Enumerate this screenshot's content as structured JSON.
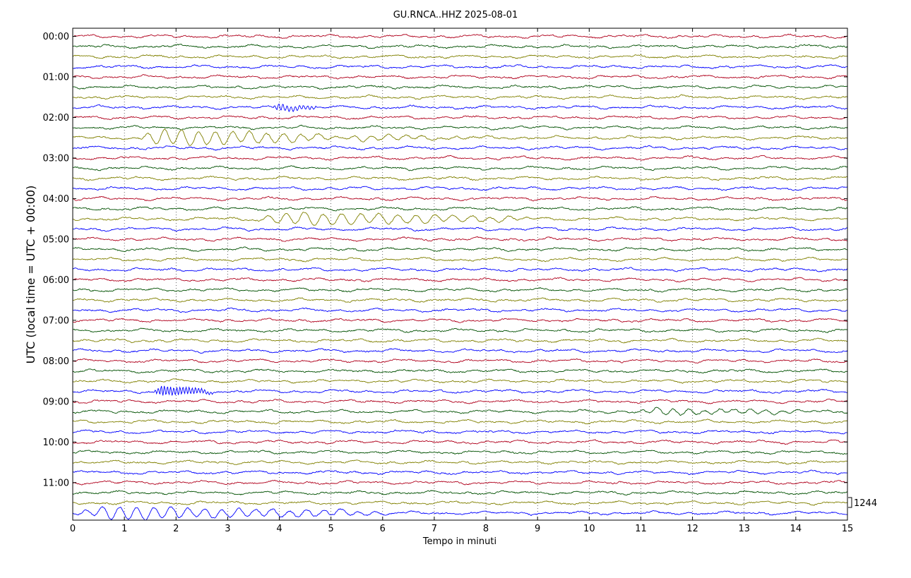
{
  "chart_data": {
    "type": "line",
    "title": "GU.RNCA..HHZ 2025-08-01",
    "xlabel": "Tempo in minuti",
    "ylabel": "UTC (local time = UTC + 00:00)",
    "xlim": [
      0,
      15
    ],
    "x_ticks": [
      "0",
      "1",
      "2",
      "3",
      "4",
      "5",
      "6",
      "7",
      "8",
      "9",
      "10",
      "11",
      "12",
      "13",
      "14",
      "15"
    ],
    "y_ticks": [
      "00:00",
      "01:00",
      "02:00",
      "03:00",
      "04:00",
      "05:00",
      "06:00",
      "07:00",
      "08:00",
      "09:00",
      "10:00",
      "11:00"
    ],
    "scale_label": "1244",
    "grid": true,
    "trace_colors": [
      "#b0001c",
      "#005000",
      "#808000",
      "#0000ff"
    ],
    "trace_count": 48,
    "events": [
      {
        "trace": 7,
        "t_start": 3.85,
        "t_end": 4.8,
        "amplitude": 0.55,
        "period": 0.08
      },
      {
        "trace": 10,
        "t_start": 1.2,
        "t_end": 5.2,
        "amplitude": 1.35,
        "period": 0.33
      },
      {
        "trace": 10,
        "t_start": 5.2,
        "t_end": 8.5,
        "amplitude": 0.45,
        "period": 0.33
      },
      {
        "trace": 18,
        "t_start": 3.5,
        "t_end": 9.0,
        "amplitude": 0.95,
        "period": 0.36
      },
      {
        "trace": 35,
        "t_start": 1.55,
        "t_end": 2.8,
        "amplitude": 0.8,
        "period": 0.06
      },
      {
        "trace": 37,
        "t_start": 10.8,
        "t_end": 15.0,
        "amplitude": 0.45,
        "period": 0.3
      },
      {
        "trace": 47,
        "t_start": 0.0,
        "t_end": 6.2,
        "amplitude": 1.0,
        "period": 0.33
      }
    ]
  }
}
